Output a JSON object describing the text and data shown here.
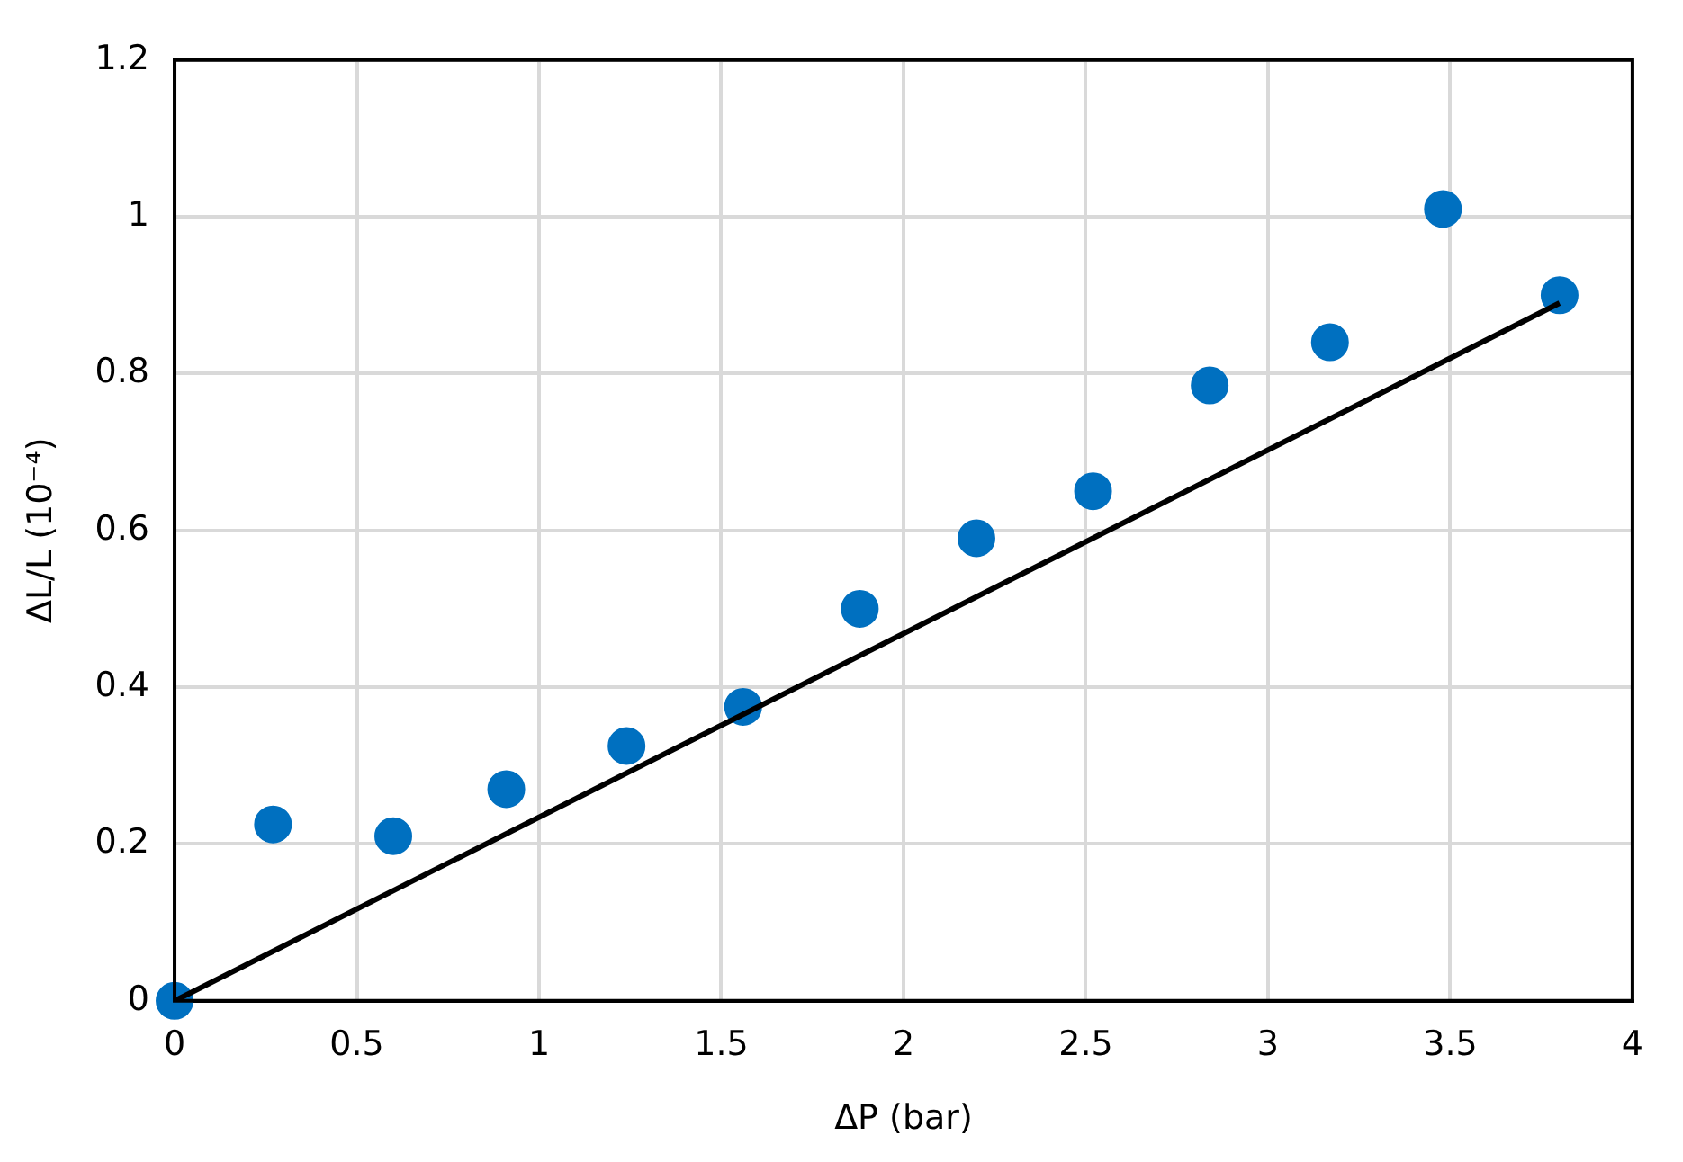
{
  "chart_data": {
    "type": "scatter",
    "xlabel": "ΔP (bar)",
    "ylabel": "ΔL/L (10⁻⁴)",
    "xlim": [
      0,
      4
    ],
    "xticks": [
      0,
      0.5,
      1,
      1.5,
      2,
      2.5,
      3,
      3.5,
      4
    ],
    "ylim": [
      0,
      1.2
    ],
    "yticks": [
      0,
      0.2,
      0.4,
      0.6,
      0.8,
      1,
      1.2
    ],
    "grid": true,
    "series": [
      {
        "color": "#0070c0",
        "marker": "circle",
        "x": [
          0,
          0.27,
          0.6,
          0.91,
          1.24,
          1.56,
          1.88,
          2.2,
          2.52,
          2.84,
          3.17,
          3.48,
          3.8
        ],
        "values": [
          0,
          0.225,
          0.21,
          0.27,
          0.325,
          0.375,
          0.5,
          0.59,
          0.65,
          0.785,
          0.84,
          1.01,
          0.9
        ]
      },
      {
        "type": "line",
        "color": "#000000",
        "marker": "none",
        "x": [
          0,
          3.8
        ],
        "values": [
          0,
          0.89
        ]
      }
    ]
  }
}
